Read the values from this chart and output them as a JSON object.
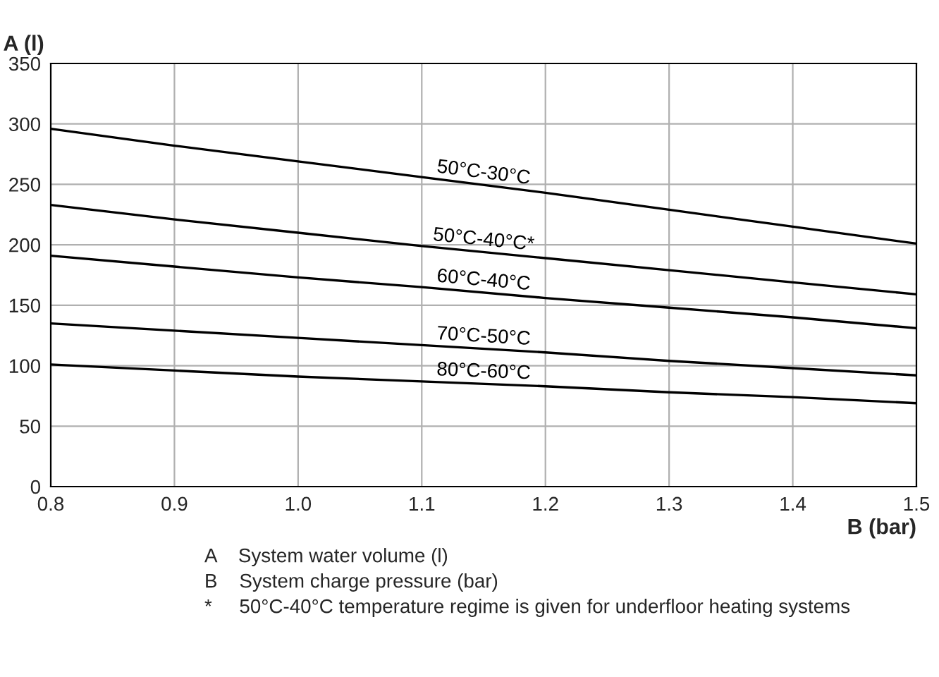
{
  "chart_data": {
    "type": "line",
    "xlabel": "B (bar)",
    "ylabel": "A (l)",
    "x": [
      0.8,
      0.9,
      1.0,
      1.1,
      1.2,
      1.3,
      1.4,
      1.5
    ],
    "series": [
      {
        "name": "50°C-30°C",
        "color": "#000000",
        "values": [
          296,
          282,
          269,
          256,
          243,
          229,
          215,
          201
        ]
      },
      {
        "name": "50°C-40°C*",
        "color": "#000000",
        "values": [
          233,
          221,
          210,
          199,
          189,
          179,
          169,
          159
        ]
      },
      {
        "name": "60°C-40°C",
        "color": "#000000",
        "values": [
          191,
          182,
          173,
          165,
          156,
          148,
          140,
          131
        ]
      },
      {
        "name": "70°C-50°C",
        "color": "#000000",
        "values": [
          135,
          129,
          123,
          117,
          111,
          104,
          98,
          92
        ]
      },
      {
        "name": "80°C-60°C",
        "color": "#000000",
        "values": [
          101,
          96,
          91,
          87,
          83,
          78,
          74,
          69
        ]
      }
    ],
    "xlim": [
      0.8,
      1.5
    ],
    "ylim": [
      0,
      350
    ],
    "xticks": [
      0.8,
      0.9,
      {
        "value": 1,
        "label": "1.0"
      },
      1.1,
      1.2,
      1.3,
      1.4,
      1.5
    ],
    "yticks": [
      0,
      50,
      100,
      150,
      200,
      250,
      300,
      350
    ],
    "grid": true,
    "marker": "none",
    "line_style": "solid",
    "legend": false,
    "annotations": [
      "A    System water volume (l)",
      "B    System charge pressure (bar)",
      "*     50°C-40°C temperature regime is given for underfloor heating systems"
    ]
  }
}
